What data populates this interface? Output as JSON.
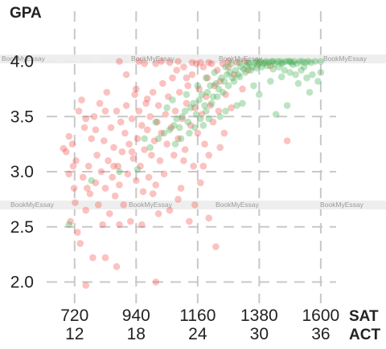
{
  "watermark": "BookMyEssay",
  "chart_data": {
    "type": "scatter",
    "title": "",
    "ylabel": "GPA",
    "xlabel_primary": "SAT",
    "xlabel_secondary": "ACT",
    "xlim": [
      620,
      1655
    ],
    "ylim": [
      1.88,
      4.28
    ],
    "x_ticks": [
      {
        "sat": "720",
        "act": "12",
        "value": 720
      },
      {
        "sat": "940",
        "act": "18",
        "value": 940
      },
      {
        "sat": "1160",
        "act": "24",
        "value": 1160
      },
      {
        "sat": "1380",
        "act": "30",
        "value": 1380
      },
      {
        "sat": "1600",
        "act": "36",
        "value": 1600
      }
    ],
    "y_ticks": [
      {
        "label": "2.0",
        "value": 2.0
      },
      {
        "label": "2.5",
        "value": 2.5
      },
      {
        "label": "3.0",
        "value": 3.0
      },
      {
        "label": "3.5",
        "value": 3.5
      },
      {
        "label": "4.0",
        "value": 4.0
      }
    ],
    "grid": true,
    "colors": {
      "red_series": "#ef4b45",
      "green_series": "#3fae4e",
      "grid": "#c8c8c8",
      "watermark_band": "#ececec"
    },
    "series": [
      {
        "color_key": "red_series",
        "points": [
          [
            680,
            3.21
          ],
          [
            690,
            3.18
          ],
          [
            700,
            2.98
          ],
          [
            705,
            2.55
          ],
          [
            712,
            3.25
          ],
          [
            718,
            2.85
          ],
          [
            722,
            2.72
          ],
          [
            725,
            3.1
          ],
          [
            730,
            2.45
          ],
          [
            735,
            3.55
          ],
          [
            740,
            2.35
          ],
          [
            745,
            3.65
          ],
          [
            750,
            2.95
          ],
          [
            755,
            3.4
          ],
          [
            760,
            2.65
          ],
          [
            765,
            2.85
          ],
          [
            770,
            3.05
          ],
          [
            775,
            2.8
          ],
          [
            780,
            3.3
          ],
          [
            785,
            2.22
          ],
          [
            790,
            3.5
          ],
          [
            795,
            2.9
          ],
          [
            800,
            3.15
          ],
          [
            805,
            2.7
          ],
          [
            810,
            3.62
          ],
          [
            815,
            3.0
          ],
          [
            820,
            2.52
          ],
          [
            825,
            3.28
          ],
          [
            830,
            2.85
          ],
          [
            835,
            3.72
          ],
          [
            840,
            3.1
          ],
          [
            845,
            2.62
          ],
          [
            850,
            3.4
          ],
          [
            855,
            2.95
          ],
          [
            860,
            3.22
          ],
          [
            865,
            2.78
          ],
          [
            870,
            3.55
          ],
          [
            875,
            3.05
          ],
          [
            880,
            2.88
          ],
          [
            885,
            3.45
          ],
          [
            890,
            3.18
          ],
          [
            895,
            2.7
          ],
          [
            900,
            3.35
          ],
          [
            905,
            3.6
          ],
          [
            910,
            2.98
          ],
          [
            915,
            3.25
          ],
          [
            920,
            2.55
          ],
          [
            925,
            3.48
          ],
          [
            930,
            3.12
          ],
          [
            935,
            3.7
          ],
          [
            940,
            2.92
          ],
          [
            945,
            3.3
          ],
          [
            950,
            3.55
          ],
          [
            955,
            3.05
          ],
          [
            960,
            3.42
          ],
          [
            965,
            2.82
          ],
          [
            970,
            3.2
          ],
          [
            975,
            3.62
          ],
          [
            980,
            3.38
          ],
          [
            985,
            2.95
          ],
          [
            990,
            3.5
          ],
          [
            995,
            3.15
          ],
          [
            1000,
            3.72
          ],
          [
            1005,
            3.28
          ],
          [
            1010,
            2.88
          ],
          [
            1015,
            3.45
          ],
          [
            1020,
            3.6
          ],
          [
            1025,
            3.1
          ],
          [
            1030,
            3.35
          ],
          [
            1035,
            3.8
          ],
          [
            1040,
            2.98
          ],
          [
            1045,
            3.52
          ],
          [
            1050,
            3.25
          ],
          [
            1055,
            3.68
          ],
          [
            1060,
            2.65
          ],
          [
            1065,
            3.4
          ],
          [
            1070,
            3.85
          ],
          [
            1075,
            3.15
          ],
          [
            1080,
            3.55
          ],
          [
            1085,
            3.92
          ],
          [
            1090,
            3.3
          ],
          [
            1095,
            3.72
          ],
          [
            1100,
            2.85
          ],
          [
            1105,
            3.48
          ],
          [
            1110,
            3.95
          ],
          [
            1115,
            3.2
          ],
          [
            1120,
            3.62
          ],
          [
            1125,
            3.78
          ],
          [
            1130,
            2.55
          ],
          [
            1135,
            3.42
          ],
          [
            1140,
            3.88
          ],
          [
            1145,
            3.05
          ],
          [
            1150,
            3.58
          ],
          [
            1155,
            3.98
          ],
          [
            1160,
            3.35
          ],
          [
            1165,
            3.75
          ],
          [
            1170,
            2.9
          ],
          [
            1175,
            3.52
          ],
          [
            1180,
            3.95
          ],
          [
            1185,
            3.25
          ],
          [
            1190,
            3.68
          ],
          [
            1195,
            3.85
          ],
          [
            1200,
            3.15
          ],
          [
            1205,
            3.6
          ],
          [
            1210,
            3.98
          ],
          [
            1215,
            3.45
          ],
          [
            1220,
            3.78
          ],
          [
            1225,
            2.32
          ],
          [
            1230,
            3.92
          ],
          [
            1235,
            3.55
          ],
          [
            1240,
            3.82
          ],
          [
            1250,
            3.98
          ],
          [
            1255,
            3.35
          ],
          [
            1260,
            3.7
          ],
          [
            1270,
            3.95
          ],
          [
            1280,
            3.58
          ],
          [
            1290,
            3.88
          ],
          [
            1300,
            3.99
          ],
          [
            1320,
            3.75
          ],
          [
            1340,
            3.92
          ],
          [
            1010,
            2.0
          ],
          [
            870,
            2.14
          ],
          [
            830,
            2.22
          ],
          [
            760,
            1.97
          ],
          [
            880,
            2.52
          ],
          [
            960,
            2.52
          ],
          [
            1020,
            2.62
          ],
          [
            1090,
            2.75
          ],
          [
            1150,
            2.7
          ],
          [
            1200,
            2.58
          ],
          [
            700,
            3.32
          ],
          [
            715,
            3.05
          ],
          [
            795,
            3.38
          ],
          [
            860,
            3.05
          ],
          [
            925,
            3.18
          ],
          [
            1000,
            2.8
          ],
          [
            1110,
            3.1
          ],
          [
            1180,
            3.05
          ],
          [
            1240,
            3.22
          ],
          [
            940,
            3.75
          ],
          [
            830,
            3.55
          ],
          [
            760,
            3.48
          ],
          [
            905,
            3.88
          ],
          [
            970,
            3.98
          ],
          [
            1060,
            3.99
          ],
          [
            1140,
            3.99
          ],
          [
            1200,
            3.99
          ],
          [
            1380,
            3.99
          ],
          [
            1420,
            3.96
          ],
          [
            1480,
            3.28
          ],
          [
            880,
            4.0
          ],
          [
            950,
            4.0
          ],
          [
            1030,
            4.0
          ],
          [
            1090,
            4.0
          ],
          [
            1270,
            4.0
          ],
          [
            1330,
            4.0
          ],
          [
            1010,
            3.98
          ],
          [
            1170,
            3.99
          ],
          [
            1120,
            3.85
          ],
          [
            980,
            3.66
          ]
        ]
      },
      {
        "color_key": "green_series",
        "points": [
          [
            700,
            2.52
          ],
          [
            780,
            2.92
          ],
          [
            880,
            3.0
          ],
          [
            945,
            3.02
          ],
          [
            990,
            3.22
          ],
          [
            1020,
            3.3
          ],
          [
            1040,
            3.35
          ],
          [
            1060,
            3.38
          ],
          [
            1075,
            3.42
          ],
          [
            1085,
            3.48
          ],
          [
            1095,
            3.4
          ],
          [
            1105,
            3.5
          ],
          [
            1115,
            3.55
          ],
          [
            1125,
            3.45
          ],
          [
            1135,
            3.58
          ],
          [
            1145,
            3.62
          ],
          [
            1155,
            3.52
          ],
          [
            1165,
            3.65
          ],
          [
            1175,
            3.7
          ],
          [
            1185,
            3.6
          ],
          [
            1195,
            3.72
          ],
          [
            1205,
            3.78
          ],
          [
            1215,
            3.68
          ],
          [
            1225,
            3.8
          ],
          [
            1235,
            3.75
          ],
          [
            1245,
            3.85
          ],
          [
            1255,
            3.82
          ],
          [
            1265,
            3.88
          ],
          [
            1275,
            3.9
          ],
          [
            1285,
            3.85
          ],
          [
            1295,
            3.92
          ],
          [
            1305,
            3.88
          ],
          [
            1315,
            3.95
          ],
          [
            1325,
            3.93
          ],
          [
            1335,
            3.96
          ],
          [
            1345,
            3.98
          ],
          [
            1355,
            3.95
          ],
          [
            1365,
            3.99
          ],
          [
            1375,
            3.97
          ],
          [
            1385,
            4.0
          ],
          [
            1395,
            3.98
          ],
          [
            1405,
            4.0
          ],
          [
            1415,
            3.99
          ],
          [
            1425,
            4.0
          ],
          [
            1435,
            3.98
          ],
          [
            1445,
            4.0
          ],
          [
            1455,
            4.0
          ],
          [
            1465,
            3.99
          ],
          [
            1475,
            4.0
          ],
          [
            1485,
            4.0
          ],
          [
            1495,
            3.99
          ],
          [
            1505,
            4.0
          ],
          [
            1515,
            3.98
          ],
          [
            1525,
            4.0
          ],
          [
            1535,
            4.0
          ],
          [
            1545,
            3.99
          ],
          [
            1555,
            4.0
          ],
          [
            1565,
            3.99
          ],
          [
            1580,
            4.0
          ],
          [
            1600,
            4.0
          ],
          [
            1150,
            3.4
          ],
          [
            1170,
            3.48
          ],
          [
            1190,
            3.55
          ],
          [
            1210,
            3.62
          ],
          [
            1230,
            3.68
          ],
          [
            1250,
            3.72
          ],
          [
            1270,
            3.78
          ],
          [
            1290,
            3.82
          ],
          [
            1310,
            3.86
          ],
          [
            1330,
            3.9
          ],
          [
            1350,
            3.92
          ],
          [
            1370,
            3.94
          ],
          [
            1390,
            3.95
          ],
          [
            1410,
            3.96
          ],
          [
            1430,
            3.93
          ],
          [
            1450,
            3.95
          ],
          [
            1470,
            3.92
          ],
          [
            1490,
            3.9
          ],
          [
            1510,
            3.88
          ],
          [
            1530,
            3.92
          ],
          [
            1550,
            3.85
          ],
          [
            1570,
            3.88
          ],
          [
            1590,
            3.82
          ],
          [
            1600,
            3.9
          ],
          [
            1440,
            3.52
          ],
          [
            1480,
            3.6
          ],
          [
            1380,
            3.7
          ],
          [
            1320,
            3.62
          ],
          [
            1260,
            3.55
          ],
          [
            1200,
            3.48
          ],
          [
            1100,
            3.3
          ],
          [
            1080,
            3.25
          ],
          [
            1130,
            3.35
          ],
          [
            1180,
            3.42
          ],
          [
            1240,
            3.5
          ],
          [
            1300,
            3.6
          ],
          [
            1360,
            3.78
          ],
          [
            1420,
            3.82
          ],
          [
            1460,
            3.86
          ],
          [
            1520,
            3.8
          ],
          [
            1560,
            3.72
          ],
          [
            1540,
            3.95
          ],
          [
            1500,
            3.97
          ],
          [
            1460,
            3.98
          ],
          [
            1400,
            3.99
          ],
          [
            1340,
            3.99
          ],
          [
            1280,
            3.98
          ],
          [
            1220,
            3.9
          ],
          [
            1160,
            3.78
          ],
          [
            1120,
            3.7
          ],
          [
            1050,
            3.58
          ],
          [
            1010,
            3.45
          ],
          [
            970,
            3.3
          ],
          [
            1070,
            3.65
          ],
          [
            1190,
            3.85
          ],
          [
            1260,
            3.95
          ],
          [
            1310,
            3.99
          ],
          [
            1370,
            4.0
          ],
          [
            1430,
            4.0
          ],
          [
            1490,
            4.0
          ]
        ]
      }
    ]
  }
}
